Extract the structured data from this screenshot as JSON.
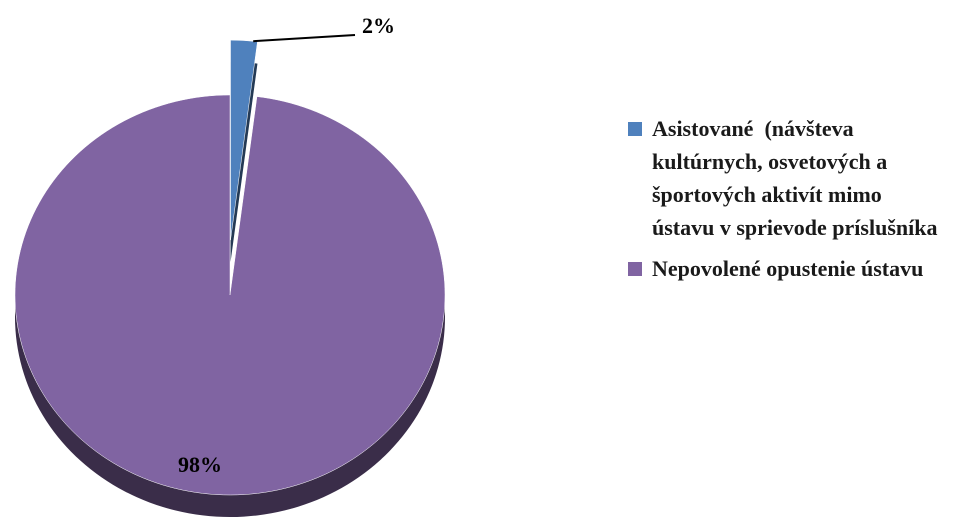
{
  "chart_data": {
    "type": "pie",
    "categories": [
      "Asistované  (návšteva kultúrnych, osvetových a športových aktivít mimo ústavu v sprievode príslušníka",
      "Nepovolené opustenie ústavu"
    ],
    "values": [
      2,
      98
    ],
    "value_labels": [
      "2%",
      "98%"
    ],
    "colors": [
      "#4f81bd",
      "#8064a2"
    ],
    "legend": "right",
    "three_d": true,
    "exploded": [
      true,
      false
    ]
  }
}
